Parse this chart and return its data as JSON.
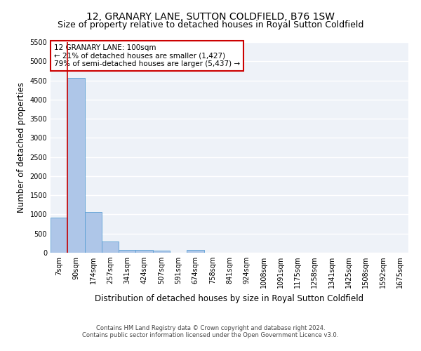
{
  "title": "12, GRANARY LANE, SUTTON COLDFIELD, B76 1SW",
  "subtitle": "Size of property relative to detached houses in Royal Sutton Coldfield",
  "xlabel": "Distribution of detached houses by size in Royal Sutton Coldfield",
  "ylabel": "Number of detached properties",
  "categories": [
    "7sqm",
    "90sqm",
    "174sqm",
    "257sqm",
    "341sqm",
    "424sqm",
    "507sqm",
    "591sqm",
    "674sqm",
    "758sqm",
    "841sqm",
    "924sqm",
    "1008sqm",
    "1091sqm",
    "1175sqm",
    "1258sqm",
    "1341sqm",
    "1425sqm",
    "1508sqm",
    "1592sqm",
    "1675sqm"
  ],
  "values": [
    920,
    4560,
    1060,
    300,
    80,
    65,
    60,
    0,
    80,
    0,
    0,
    0,
    0,
    0,
    0,
    0,
    0,
    0,
    0,
    0,
    0
  ],
  "bar_color": "#aec6e8",
  "bar_edge_color": "#5a9fd4",
  "vline_color": "#cc0000",
  "annotation_text": "12 GRANARY LANE: 100sqm\n← 21% of detached houses are smaller (1,427)\n79% of semi-detached houses are larger (5,437) →",
  "annotation_box_color": "#ffffff",
  "annotation_box_edge_color": "#cc0000",
  "ylim": [
    0,
    5500
  ],
  "yticks": [
    0,
    500,
    1000,
    1500,
    2000,
    2500,
    3000,
    3500,
    4000,
    4500,
    5000,
    5500
  ],
  "bg_color": "#eef2f8",
  "grid_color": "#ffffff",
  "footer1": "Contains HM Land Registry data © Crown copyright and database right 2024.",
  "footer2": "Contains public sector information licensed under the Open Government Licence v3.0.",
  "title_fontsize": 10,
  "subtitle_fontsize": 9,
  "tick_fontsize": 7,
  "ylabel_fontsize": 8.5,
  "xlabel_fontsize": 8.5,
  "annotation_fontsize": 7.5,
  "footer_fontsize": 6
}
